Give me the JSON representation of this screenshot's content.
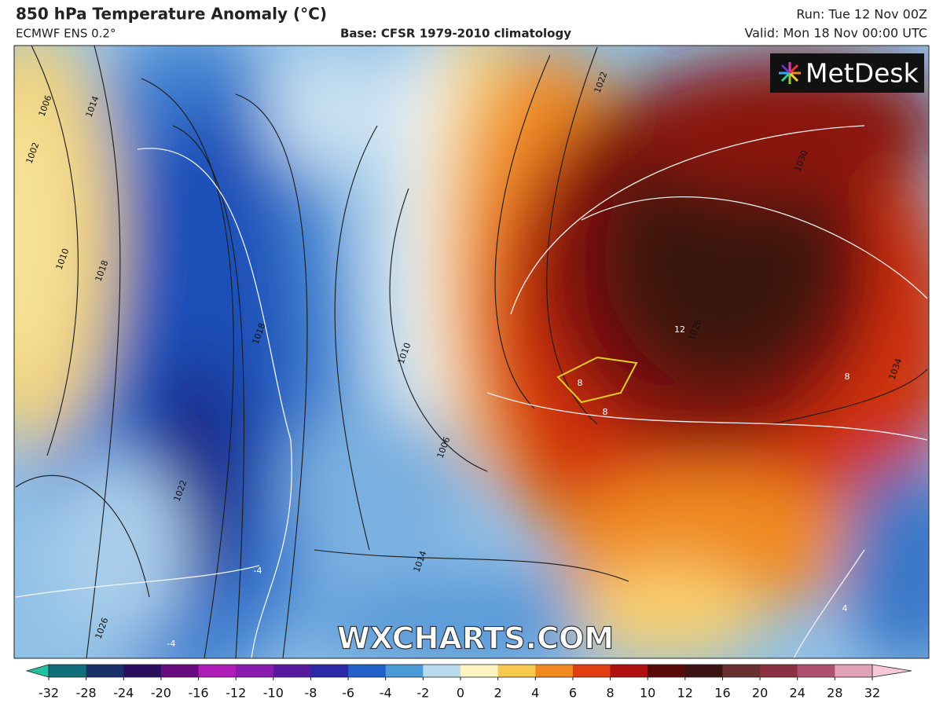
{
  "header": {
    "title": "850 hPa Temperature Anomaly (°C)",
    "model": "ECMWF ENS 0.2°",
    "base": "Base: CFSR 1979-2010 climatology",
    "run": "Run: Tue 12 Nov 00Z",
    "valid": "Valid: Mon 18 Nov 00:00 UTC"
  },
  "logo": "MetDesk",
  "watermark": "WXCHARTS.COM",
  "contour_labels": [
    "1006",
    "1002",
    "1014",
    "1010",
    "1018",
    "1018",
    "1010",
    "1006",
    "1014",
    "1022",
    "1026",
    "1022",
    "1030",
    "1026",
    "1034",
    "12",
    "8",
    "8",
    "8",
    "-4",
    "-4",
    "4"
  ],
  "colorbar": {
    "ticks": [
      -32,
      -28,
      -24,
      -20,
      -16,
      -12,
      -10,
      -8,
      -6,
      -4,
      -2,
      0,
      2,
      4,
      6,
      8,
      10,
      12,
      16,
      20,
      24,
      28,
      32
    ],
    "colors": [
      "#0f6f7a",
      "#17306a",
      "#2a0f5e",
      "#6a0a80",
      "#b01cb8",
      "#8a1ab0",
      "#5a1aa0",
      "#2a2aa8",
      "#2060c8",
      "#4a9ad8",
      "#b8dcee",
      "#fff4c0",
      "#f8c850",
      "#f08a20",
      "#e04010",
      "#b01010",
      "#5a0a0a",
      "#3a1212",
      "#6a3030",
      "#8a3040",
      "#b05070",
      "#e0a0b8"
    ],
    "under_color": "#20c0a0",
    "over_color": "#f4c8d8"
  }
}
